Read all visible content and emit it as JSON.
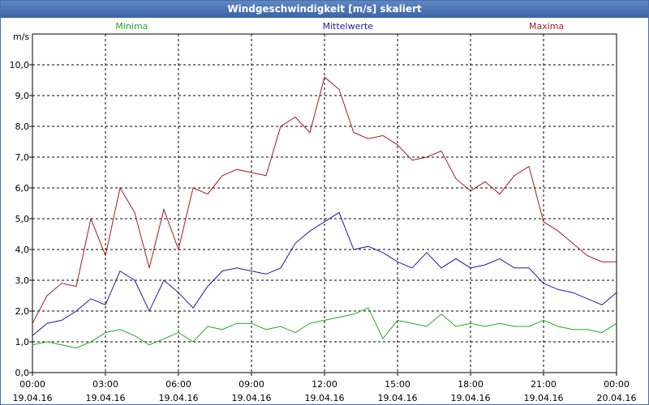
{
  "window": {
    "title": "Windgeschwindigkeit [m/s] skaliert"
  },
  "chart_data": {
    "type": "line",
    "title": "Windgeschwindigkeit [m/s] skaliert",
    "ylabel": "m/s",
    "ylim": [
      0,
      11
    ],
    "yticks": [
      0,
      1,
      2,
      3,
      4,
      5,
      6,
      7,
      8,
      9,
      10
    ],
    "ytick_labels": [
      "0,0",
      "1,0",
      "2,0",
      "3,0",
      "4,0",
      "5,0",
      "6,0",
      "7,0",
      "8,0",
      "9,0",
      "10,0"
    ],
    "xlim_hours": [
      0,
      24
    ],
    "xticks": [
      {
        "time": "00:00",
        "date": "19.04.16",
        "hour": 0
      },
      {
        "time": "03:00",
        "date": "19.04.16",
        "hour": 3
      },
      {
        "time": "06:00",
        "date": "19.04.16",
        "hour": 6
      },
      {
        "time": "09:00",
        "date": "19.04.16",
        "hour": 9
      },
      {
        "time": "12:00",
        "date": "19.04.16",
        "hour": 12
      },
      {
        "time": "15:00",
        "date": "19.04.16",
        "hour": 15
      },
      {
        "time": "18:00",
        "date": "19.04.16",
        "hour": 18
      },
      {
        "time": "21:00",
        "date": "19.04.16",
        "hour": 21
      },
      {
        "time": "00:00",
        "date": "20.04.16",
        "hour": 24
      }
    ],
    "grid": true,
    "legend_placement": "top",
    "series": [
      {
        "name": "Minima",
        "color": "#22aa22",
        "x": [
          0,
          0.6,
          1.2,
          1.8,
          2.4,
          3,
          3.6,
          4.2,
          4.8,
          5.4,
          6,
          6.6,
          7.2,
          7.8,
          8.4,
          9,
          9.6,
          10.2,
          10.8,
          11.4,
          12,
          12.6,
          13.2,
          13.8,
          14.4,
          15,
          15.6,
          16.2,
          16.8,
          17.4,
          18,
          18.6,
          19.2,
          19.8,
          20.4,
          21,
          21.6,
          22.2,
          22.8,
          23.4,
          24
        ],
        "y": [
          0.9,
          1.0,
          0.9,
          0.8,
          1.0,
          1.3,
          1.4,
          1.2,
          0.9,
          1.1,
          1.3,
          1.0,
          1.5,
          1.4,
          1.6,
          1.6,
          1.4,
          1.5,
          1.3,
          1.6,
          1.7,
          1.8,
          1.9,
          2.1,
          1.1,
          1.7,
          1.6,
          1.5,
          1.9,
          1.5,
          1.6,
          1.5,
          1.6,
          1.5,
          1.5,
          1.7,
          1.5,
          1.4,
          1.4,
          1.3,
          1.6
        ]
      },
      {
        "name": "Mittelwerte",
        "color": "#1a1aaa",
        "x": [
          0,
          0.6,
          1.2,
          1.8,
          2.4,
          3,
          3.6,
          4.2,
          4.8,
          5.4,
          6,
          6.6,
          7.2,
          7.8,
          8.4,
          9,
          9.6,
          10.2,
          10.8,
          11.4,
          12,
          12.6,
          13.2,
          13.8,
          14.4,
          15,
          15.6,
          16.2,
          16.8,
          17.4,
          18,
          18.6,
          19.2,
          19.8,
          20.4,
          21,
          21.6,
          22.2,
          22.8,
          23.4,
          24
        ],
        "y": [
          1.2,
          1.6,
          1.7,
          2.0,
          2.4,
          2.2,
          3.3,
          3.0,
          2.0,
          3.0,
          2.6,
          2.1,
          2.8,
          3.3,
          3.4,
          3.3,
          3.2,
          3.4,
          4.2,
          4.6,
          4.9,
          5.2,
          4.0,
          4.1,
          3.9,
          3.6,
          3.4,
          3.9,
          3.4,
          3.7,
          3.4,
          3.5,
          3.7,
          3.4,
          3.4,
          2.9,
          2.7,
          2.6,
          2.4,
          2.2,
          2.6
        ]
      },
      {
        "name": "Maxima",
        "color": "#aa1a1a",
        "x": [
          0,
          0.6,
          1.2,
          1.8,
          2.4,
          3,
          3.6,
          4.2,
          4.8,
          5.4,
          6,
          6.6,
          7.2,
          7.8,
          8.4,
          9,
          9.6,
          10.2,
          10.8,
          11.4,
          12,
          12.6,
          13.2,
          13.8,
          14.4,
          15,
          15.6,
          16.2,
          16.8,
          17.4,
          18,
          18.6,
          19.2,
          19.8,
          20.4,
          21,
          21.6,
          22.2,
          22.8,
          23.4,
          24
        ],
        "y": [
          1.6,
          2.5,
          2.9,
          2.8,
          5.0,
          3.8,
          6.0,
          5.2,
          3.4,
          5.3,
          4.0,
          6.0,
          5.8,
          6.4,
          6.6,
          6.5,
          6.4,
          8.0,
          8.3,
          7.8,
          9.6,
          9.2,
          7.8,
          7.6,
          7.7,
          7.4,
          6.9,
          7.0,
          7.2,
          6.3,
          5.9,
          6.2,
          5.8,
          6.4,
          6.7,
          4.9,
          4.6,
          4.2,
          3.8,
          3.6,
          3.6
        ]
      }
    ]
  }
}
